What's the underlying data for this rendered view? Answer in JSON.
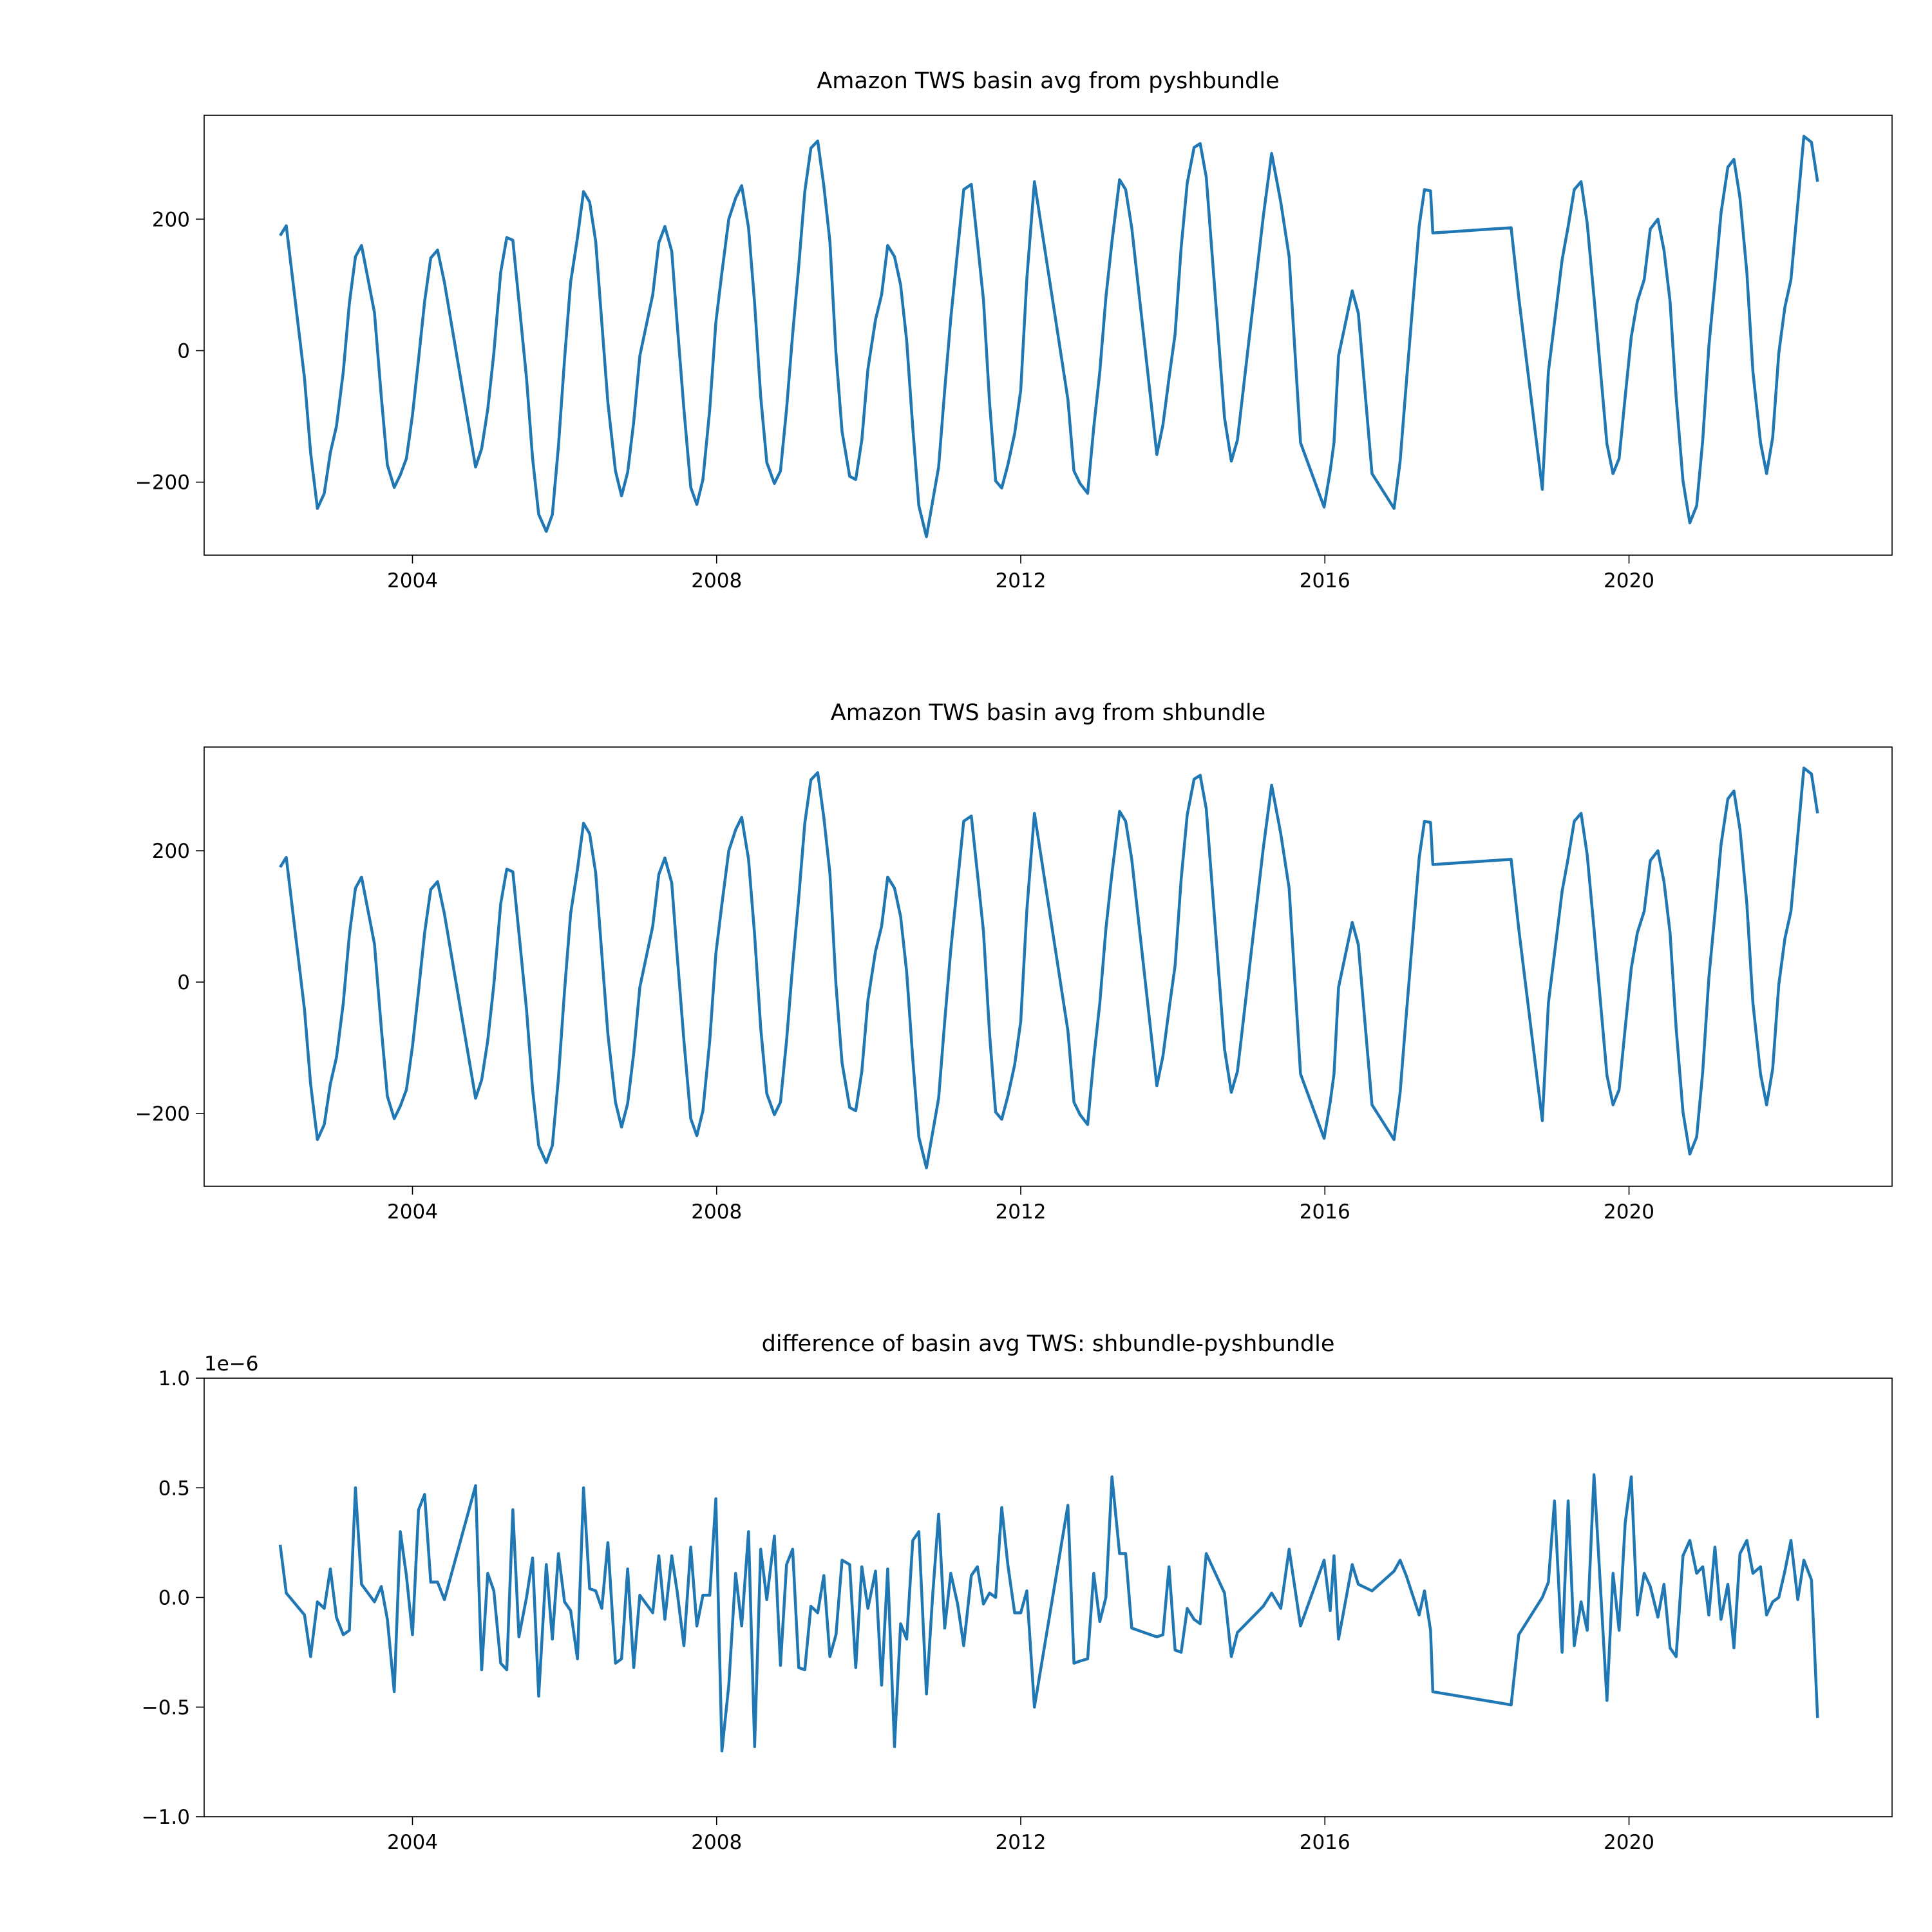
{
  "chart_data": [
    {
      "type": "line",
      "title": "Amazon TWS basin avg from pyshbundle",
      "color": "#1f77b4",
      "x": [
        2002.26,
        2002.34,
        2002.58,
        2002.66,
        2002.75,
        2002.84,
        2002.92,
        2003.0,
        2003.09,
        2003.17,
        2003.25,
        2003.33,
        2003.5,
        2003.59,
        2003.67,
        2003.76,
        2003.84,
        2003.92,
        2004.0,
        2004.08,
        2004.16,
        2004.24,
        2004.33,
        2004.42,
        2004.83,
        2004.91,
        2004.99,
        2005.07,
        2005.16,
        2005.24,
        2005.32,
        2005.4,
        2005.5,
        2005.58,
        2005.66,
        2005.76,
        2005.84,
        2005.92,
        2006.0,
        2006.08,
        2006.17,
        2006.25,
        2006.33,
        2006.41,
        2006.49,
        2006.57,
        2006.67,
        2006.75,
        2006.83,
        2006.91,
        2006.99,
        2007.16,
        2007.24,
        2007.32,
        2007.41,
        2007.48,
        2007.57,
        2007.66,
        2007.74,
        2007.82,
        2007.91,
        2007.99,
        2008.07,
        2008.16,
        2008.25,
        2008.33,
        2008.42,
        2008.5,
        2008.58,
        2008.66,
        2008.76,
        2008.84,
        2008.92,
        2009.0,
        2009.08,
        2009.16,
        2009.24,
        2009.33,
        2009.41,
        2009.49,
        2009.57,
        2009.65,
        2009.75,
        2009.83,
        2009.91,
        2009.99,
        2010.09,
        2010.17,
        2010.25,
        2010.34,
        2010.42,
        2010.5,
        2010.58,
        2010.66,
        2010.76,
        2010.84,
        2010.92,
        2011.0,
        2011.08,
        2011.17,
        2011.25,
        2011.35,
        2011.43,
        2011.51,
        2011.59,
        2011.67,
        2011.75,
        2011.83,
        2011.92,
        2012.0,
        2012.08,
        2012.18,
        2012.62,
        2012.7,
        2012.78,
        2012.88,
        2012.96,
        2013.04,
        2013.12,
        2013.2,
        2013.3,
        2013.38,
        2013.46,
        2013.79,
        2013.87,
        2013.95,
        2014.03,
        2014.11,
        2014.19,
        2014.28,
        2014.36,
        2014.44,
        2014.68,
        2014.77,
        2014.85,
        2015.19,
        2015.3,
        2015.42,
        2015.53,
        2015.68,
        2015.99,
        2016.07,
        2016.12,
        2016.18,
        2016.36,
        2016.44,
        2016.62,
        2016.91,
        2016.99,
        2017.07,
        2017.24,
        2017.31,
        2017.39,
        2017.42,
        2018.45,
        2018.55,
        2018.86,
        2018.94,
        2019.02,
        2019.12,
        2019.2,
        2019.28,
        2019.37,
        2019.45,
        2019.54,
        2019.71,
        2019.79,
        2019.87,
        2019.95,
        2020.03,
        2020.11,
        2020.2,
        2020.28,
        2020.38,
        2020.46,
        2020.54,
        2020.62,
        2020.71,
        2020.8,
        2020.89,
        2020.97,
        2021.05,
        2021.13,
        2021.21,
        2021.3,
        2021.38,
        2021.46,
        2021.55,
        2021.63,
        2021.73,
        2021.81,
        2021.89,
        2021.97,
        2022.05,
        2022.13,
        2022.22,
        2022.3,
        2022.4,
        2022.48
      ],
      "values": [
        175,
        190,
        -42,
        -155,
        -240,
        -217,
        -155,
        -115,
        -32,
        72,
        143,
        160,
        58,
        -70,
        -174,
        -208,
        -189,
        -164,
        -98,
        -13,
        75,
        141,
        153,
        104,
        -177,
        -149,
        -89,
        -4,
        119,
        172,
        168,
        75,
        -42,
        -164,
        -249,
        -275,
        -249,
        -145,
        -13,
        104,
        172,
        242,
        226,
        166,
        43,
        -79,
        -183,
        -221,
        -185,
        -108,
        -8,
        85,
        164,
        189,
        151,
        43,
        -89,
        -208,
        -234,
        -196,
        -89,
        43,
        119,
        200,
        232,
        251,
        187,
        72,
        -70,
        -170,
        -202,
        -183,
        -89,
        25,
        128,
        242,
        308,
        319,
        251,
        166,
        -4,
        -123,
        -191,
        -196,
        -136,
        -28,
        47,
        85,
        160,
        143,
        100,
        15,
        -117,
        -236,
        -283,
        -230,
        -177,
        -60,
        49,
        153,
        245,
        253,
        166,
        77,
        -79,
        -198,
        -209,
        -174,
        -126,
        -60,
        109,
        257,
        -74,
        -183,
        -202,
        -217,
        -117,
        -32,
        81,
        166,
        260,
        245,
        187,
        -158,
        -113,
        -42,
        25,
        157,
        255,
        309,
        315,
        264,
        -102,
        -168,
        -136,
        204,
        300,
        226,
        143,
        -140,
        -238,
        -183,
        -140,
        -8,
        91,
        57,
        -187,
        -240,
        -168,
        -51,
        189,
        245,
        243,
        179,
        187,
        81,
        -211,
        -32,
        43,
        138,
        189,
        245,
        257,
        194,
        81,
        -142,
        -187,
        -164,
        -70,
        21,
        75,
        108,
        185,
        200,
        153,
        75,
        -70,
        -198,
        -262,
        -236,
        -136,
        6,
        104,
        209,
        279,
        291,
        232,
        119,
        -32,
        -140,
        -187,
        -132,
        -4,
        66,
        108,
        223,
        326,
        317,
        257
      ],
      "xlim": [
        2001.26,
        2023.46
      ],
      "xticks": [
        2004,
        2008,
        2012,
        2016,
        2020
      ],
      "ylim": [
        -311,
        358
      ],
      "yticks": [
        {
          "value": -200,
          "label": "−200"
        },
        0,
        200
      ]
    },
    {
      "type": "line",
      "title": "Amazon TWS basin avg from shbundle",
      "color": "#1f77b4",
      "x": [
        2002.26,
        2002.34,
        2002.58,
        2002.66,
        2002.75,
        2002.84,
        2002.92,
        2003.0,
        2003.09,
        2003.17,
        2003.25,
        2003.33,
        2003.5,
        2003.59,
        2003.67,
        2003.76,
        2003.84,
        2003.92,
        2004.0,
        2004.08,
        2004.16,
        2004.24,
        2004.33,
        2004.42,
        2004.83,
        2004.91,
        2004.99,
        2005.07,
        2005.16,
        2005.24,
        2005.32,
        2005.4,
        2005.5,
        2005.58,
        2005.66,
        2005.76,
        2005.84,
        2005.92,
        2006.0,
        2006.08,
        2006.17,
        2006.25,
        2006.33,
        2006.41,
        2006.49,
        2006.57,
        2006.67,
        2006.75,
        2006.83,
        2006.91,
        2006.99,
        2007.16,
        2007.24,
        2007.32,
        2007.41,
        2007.48,
        2007.57,
        2007.66,
        2007.74,
        2007.82,
        2007.91,
        2007.99,
        2008.07,
        2008.16,
        2008.25,
        2008.33,
        2008.42,
        2008.5,
        2008.58,
        2008.66,
        2008.76,
        2008.84,
        2008.92,
        2009.0,
        2009.08,
        2009.16,
        2009.24,
        2009.33,
        2009.41,
        2009.49,
        2009.57,
        2009.65,
        2009.75,
        2009.83,
        2009.91,
        2009.99,
        2010.09,
        2010.17,
        2010.25,
        2010.34,
        2010.42,
        2010.5,
        2010.58,
        2010.66,
        2010.76,
        2010.84,
        2010.92,
        2011.0,
        2011.08,
        2011.17,
        2011.25,
        2011.35,
        2011.43,
        2011.51,
        2011.59,
        2011.67,
        2011.75,
        2011.83,
        2011.92,
        2012.0,
        2012.08,
        2012.18,
        2012.62,
        2012.7,
        2012.78,
        2012.88,
        2012.96,
        2013.04,
        2013.12,
        2013.2,
        2013.3,
        2013.38,
        2013.46,
        2013.79,
        2013.87,
        2013.95,
        2014.03,
        2014.11,
        2014.19,
        2014.28,
        2014.36,
        2014.44,
        2014.68,
        2014.77,
        2014.85,
        2015.19,
        2015.3,
        2015.42,
        2015.53,
        2015.68,
        2015.99,
        2016.07,
        2016.12,
        2016.18,
        2016.36,
        2016.44,
        2016.62,
        2016.91,
        2016.99,
        2017.07,
        2017.24,
        2017.31,
        2017.39,
        2017.42,
        2018.45,
        2018.55,
        2018.86,
        2018.94,
        2019.02,
        2019.12,
        2019.2,
        2019.28,
        2019.37,
        2019.45,
        2019.54,
        2019.71,
        2019.79,
        2019.87,
        2019.95,
        2020.03,
        2020.11,
        2020.2,
        2020.28,
        2020.38,
        2020.46,
        2020.54,
        2020.62,
        2020.71,
        2020.8,
        2020.89,
        2020.97,
        2021.05,
        2021.13,
        2021.21,
        2021.3,
        2021.38,
        2021.46,
        2021.55,
        2021.63,
        2021.73,
        2021.81,
        2021.89,
        2021.97,
        2022.05,
        2022.13,
        2022.22,
        2022.3,
        2022.4,
        2022.48
      ],
      "values": [
        175,
        190,
        -42,
        -155,
        -240,
        -217,
        -155,
        -115,
        -32,
        72,
        143,
        160,
        58,
        -70,
        -174,
        -208,
        -189,
        -164,
        -98,
        -13,
        75,
        141,
        153,
        104,
        -177,
        -149,
        -89,
        -4,
        119,
        172,
        168,
        75,
        -42,
        -164,
        -249,
        -275,
        -249,
        -145,
        -13,
        104,
        172,
        242,
        226,
        166,
        43,
        -79,
        -183,
        -221,
        -185,
        -108,
        -8,
        85,
        164,
        189,
        151,
        43,
        -89,
        -208,
        -234,
        -196,
        -89,
        43,
        119,
        200,
        232,
        251,
        187,
        72,
        -70,
        -170,
        -202,
        -183,
        -89,
        25,
        128,
        242,
        308,
        319,
        251,
        166,
        -4,
        -123,
        -191,
        -196,
        -136,
        -28,
        47,
        85,
        160,
        143,
        100,
        15,
        -117,
        -236,
        -283,
        -230,
        -177,
        -60,
        49,
        153,
        245,
        253,
        166,
        77,
        -79,
        -198,
        -209,
        -174,
        -126,
        -60,
        109,
        257,
        -74,
        -183,
        -202,
        -217,
        -117,
        -32,
        81,
        166,
        260,
        245,
        187,
        -158,
        -113,
        -42,
        25,
        157,
        255,
        309,
        315,
        264,
        -102,
        -168,
        -136,
        204,
        300,
        226,
        143,
        -140,
        -238,
        -183,
        -140,
        -8,
        91,
        57,
        -187,
        -240,
        -168,
        -51,
        189,
        245,
        243,
        179,
        187,
        81,
        -211,
        -32,
        43,
        138,
        189,
        245,
        257,
        194,
        81,
        -142,
        -187,
        -164,
        -70,
        21,
        75,
        108,
        185,
        200,
        153,
        75,
        -70,
        -198,
        -262,
        -236,
        -136,
        6,
        104,
        209,
        279,
        291,
        232,
        119,
        -32,
        -140,
        -187,
        -132,
        -4,
        66,
        108,
        223,
        326,
        317,
        257
      ],
      "xlim": [
        2001.26,
        2023.46
      ],
      "xticks": [
        2004,
        2008,
        2012,
        2016,
        2020
      ],
      "ylim": [
        -311,
        358
      ],
      "yticks": [
        {
          "value": -200,
          "label": "−200"
        },
        0,
        200
      ]
    },
    {
      "type": "line",
      "title": "difference of basin avg TWS: shbundle-pyshbundle",
      "color": "#1f77b4",
      "y_offset_text": "1e−6",
      "x": [
        2002.26,
        2002.34,
        2002.58,
        2002.66,
        2002.75,
        2002.84,
        2002.92,
        2003.0,
        2003.09,
        2003.17,
        2003.25,
        2003.33,
        2003.5,
        2003.59,
        2003.67,
        2003.76,
        2003.84,
        2003.92,
        2004.0,
        2004.08,
        2004.16,
        2004.24,
        2004.33,
        2004.42,
        2004.83,
        2004.91,
        2004.99,
        2005.07,
        2005.16,
        2005.24,
        2005.32,
        2005.4,
        2005.5,
        2005.58,
        2005.66,
        2005.76,
        2005.84,
        2005.92,
        2006.0,
        2006.08,
        2006.17,
        2006.25,
        2006.33,
        2006.41,
        2006.49,
        2006.57,
        2006.67,
        2006.75,
        2006.83,
        2006.91,
        2006.99,
        2007.16,
        2007.24,
        2007.32,
        2007.41,
        2007.48,
        2007.57,
        2007.66,
        2007.74,
        2007.82,
        2007.91,
        2007.99,
        2008.07,
        2008.16,
        2008.25,
        2008.33,
        2008.42,
        2008.5,
        2008.58,
        2008.66,
        2008.76,
        2008.84,
        2008.92,
        2009.0,
        2009.08,
        2009.16,
        2009.24,
        2009.33,
        2009.41,
        2009.49,
        2009.57,
        2009.65,
        2009.75,
        2009.83,
        2009.91,
        2009.99,
        2010.09,
        2010.17,
        2010.25,
        2010.34,
        2010.42,
        2010.5,
        2010.58,
        2010.66,
        2010.76,
        2010.84,
        2010.92,
        2011.0,
        2011.08,
        2011.17,
        2011.25,
        2011.35,
        2011.43,
        2011.51,
        2011.59,
        2011.67,
        2011.75,
        2011.83,
        2011.92,
        2012.0,
        2012.08,
        2012.18,
        2012.62,
        2012.7,
        2012.78,
        2012.88,
        2012.96,
        2013.04,
        2013.12,
        2013.2,
        2013.3,
        2013.38,
        2013.46,
        2013.79,
        2013.87,
        2013.95,
        2014.03,
        2014.11,
        2014.19,
        2014.28,
        2014.36,
        2014.44,
        2014.68,
        2014.77,
        2014.85,
        2015.19,
        2015.3,
        2015.42,
        2015.53,
        2015.68,
        2015.99,
        2016.07,
        2016.12,
        2016.18,
        2016.36,
        2016.44,
        2016.62,
        2016.91,
        2016.99,
        2017.07,
        2017.24,
        2017.31,
        2017.39,
        2017.42,
        2018.45,
        2018.55,
        2018.86,
        2018.94,
        2019.02,
        2019.12,
        2019.2,
        2019.28,
        2019.37,
        2019.45,
        2019.54,
        2019.71,
        2019.79,
        2019.87,
        2019.95,
        2020.03,
        2020.11,
        2020.2,
        2020.28,
        2020.38,
        2020.46,
        2020.54,
        2020.62,
        2020.71,
        2020.8,
        2020.89,
        2020.97,
        2021.05,
        2021.13,
        2021.21,
        2021.3,
        2021.38,
        2021.46,
        2021.55,
        2021.63,
        2021.73,
        2021.81,
        2021.89,
        2021.97,
        2022.05,
        2022.13,
        2022.22,
        2022.3,
        2022.4,
        2022.48
      ],
      "values": [
        0.24,
        0.02,
        -0.08,
        -0.27,
        -0.02,
        -0.05,
        0.13,
        -0.09,
        -0.17,
        -0.15,
        0.5,
        0.06,
        -0.02,
        0.05,
        -0.1,
        -0.43,
        0.3,
        0.1,
        -0.17,
        0.4,
        0.47,
        0.07,
        0.07,
        -0.01,
        0.51,
        -0.33,
        0.11,
        0.03,
        -0.3,
        -0.33,
        0.4,
        -0.18,
        0.0,
        0.18,
        -0.45,
        0.15,
        -0.19,
        0.2,
        -0.02,
        -0.06,
        -0.28,
        0.5,
        0.04,
        0.03,
        -0.05,
        0.25,
        -0.3,
        -0.28,
        0.13,
        -0.32,
        0.01,
        -0.07,
        0.19,
        -0.1,
        0.19,
        0.03,
        -0.22,
        0.23,
        -0.13,
        0.01,
        0.01,
        0.45,
        -0.7,
        -0.4,
        0.11,
        -0.13,
        0.3,
        -0.68,
        0.22,
        -0.01,
        0.28,
        -0.31,
        0.15,
        0.22,
        -0.32,
        -0.33,
        -0.04,
        -0.07,
        0.1,
        -0.27,
        -0.17,
        0.17,
        0.15,
        -0.32,
        0.14,
        -0.05,
        0.12,
        -0.4,
        0.13,
        -0.68,
        -0.12,
        -0.19,
        0.26,
        0.3,
        -0.44,
        0.0,
        0.38,
        -0.14,
        0.11,
        -0.03,
        -0.22,
        0.1,
        0.14,
        -0.03,
        0.02,
        0.0,
        0.41,
        0.15,
        -0.07,
        -0.07,
        0.03,
        -0.5,
        0.42,
        -0.3,
        -0.29,
        -0.28,
        0.11,
        -0.11,
        0.0,
        0.55,
        0.2,
        0.2,
        -0.14,
        -0.18,
        -0.17,
        0.14,
        -0.24,
        -0.25,
        -0.05,
        -0.1,
        -0.12,
        0.2,
        0.02,
        -0.27,
        -0.16,
        -0.04,
        0.02,
        -0.05,
        0.22,
        -0.13,
        0.17,
        -0.06,
        0.19,
        -0.19,
        0.15,
        0.06,
        0.03,
        0.12,
        0.17,
        0.1,
        -0.08,
        0.03,
        -0.15,
        -0.43,
        -0.49,
        -0.17,
        0.0,
        0.07,
        0.44,
        -0.25,
        0.44,
        -0.22,
        -0.02,
        -0.15,
        0.56,
        -0.47,
        0.11,
        -0.15,
        0.34,
        0.55,
        -0.08,
        0.11,
        0.05,
        -0.09,
        0.06,
        -0.23,
        -0.27,
        0.19,
        0.26,
        0.11,
        0.14,
        -0.08,
        0.23,
        -0.1,
        0.06,
        -0.23,
        0.2,
        0.26,
        0.11,
        0.14,
        -0.08,
        -0.02,
        0.0,
        0.12,
        0.26,
        -0.01,
        0.17,
        0.08,
        -0.55
      ],
      "xlim": [
        2001.26,
        2023.46
      ],
      "xticks": [
        2004,
        2008,
        2012,
        2016,
        2020
      ],
      "ylim": [
        -1,
        1
      ],
      "yticks": [
        {
          "value": -1,
          "label": "−1.0"
        },
        {
          "value": -0.5,
          "label": "−0.5"
        },
        {
          "value": 0,
          "label": "0.0"
        },
        {
          "value": 0.5,
          "label": "0.5"
        },
        {
          "value": 1,
          "label": "1.0"
        }
      ]
    }
  ]
}
